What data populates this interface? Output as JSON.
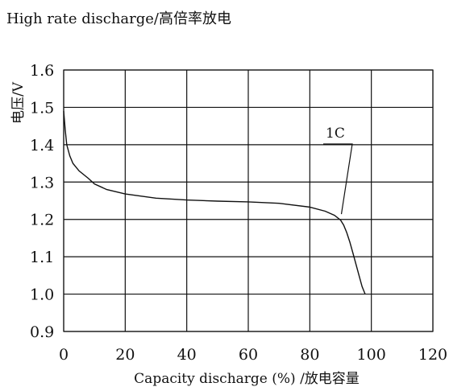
{
  "chart_data": {
    "type": "line",
    "title": "High rate discharge/高倍率放电",
    "xlabel": "Capacity discharge (%) /放电容量",
    "ylabel": "电压/V",
    "xlim": [
      0,
      120
    ],
    "ylim": [
      0.9,
      1.6
    ],
    "x_ticks": [
      0,
      20,
      40,
      60,
      80,
      100,
      120
    ],
    "x_tick_labels": [
      "0",
      "20",
      "40",
      "60",
      "80",
      "100",
      "120"
    ],
    "y_ticks": [
      0.9,
      1.0,
      1.1,
      1.2,
      1.3,
      1.4,
      1.5,
      1.6
    ],
    "y_tick_labels": [
      "0.9",
      "1.0",
      "1.1",
      "1.2",
      "1.3",
      "1.4",
      "1.5",
      "1.6"
    ],
    "grid": true,
    "annotations": [
      {
        "text": "1C",
        "points_to": [
          90,
          1.21
        ]
      }
    ],
    "series": [
      {
        "name": "1C",
        "x": [
          0,
          0.5,
          1,
          2,
          3,
          5,
          8,
          10,
          14,
          20,
          30,
          40,
          50,
          60,
          70,
          80,
          85,
          88,
          90,
          91,
          92,
          93,
          94,
          95,
          96,
          97,
          98
        ],
        "y": [
          1.49,
          1.44,
          1.4,
          1.37,
          1.35,
          1.33,
          1.31,
          1.295,
          1.28,
          1.268,
          1.257,
          1.252,
          1.249,
          1.247,
          1.243,
          1.233,
          1.222,
          1.211,
          1.198,
          1.185,
          1.165,
          1.14,
          1.11,
          1.08,
          1.05,
          1.02,
          1.0
        ]
      }
    ]
  }
}
